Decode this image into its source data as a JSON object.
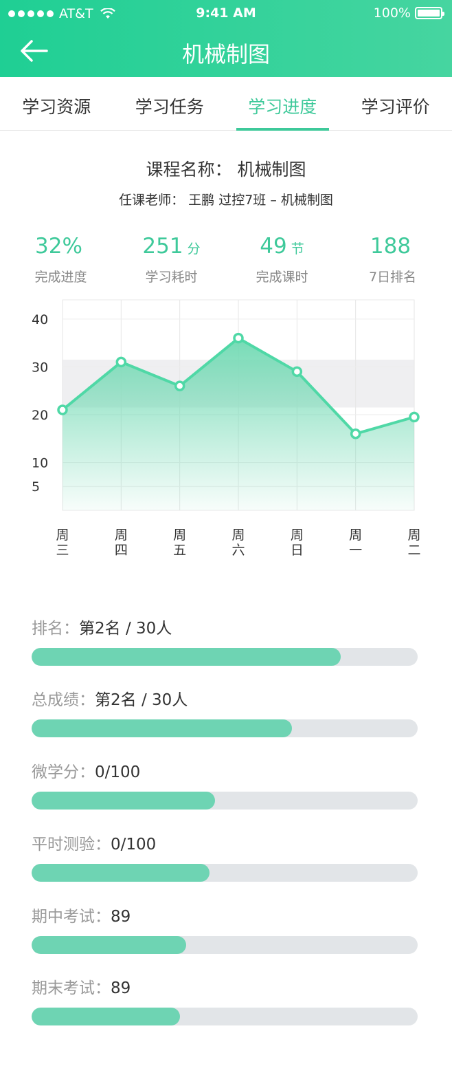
{
  "status_bar": {
    "carrier": "AT&T",
    "time": "9:41 AM",
    "battery": "100%"
  },
  "nav": {
    "title": "机械制图"
  },
  "tabs": [
    {
      "label": "学习资源",
      "active": false
    },
    {
      "label": "学习任务",
      "active": false
    },
    {
      "label": "学习进度",
      "active": true
    },
    {
      "label": "学习评价",
      "active": false
    }
  ],
  "course": {
    "name": "课程名称：  机械制图",
    "teacher": "任课老师：  王鹏    过控7班 – 机械制图"
  },
  "stats": [
    {
      "value": "32%",
      "unit": "",
      "label": "完成进度"
    },
    {
      "value": "251",
      "unit": "分",
      "label": "学习耗时"
    },
    {
      "value": "49",
      "unit": "节",
      "label": "完成课时"
    },
    {
      "value": "188",
      "unit": "",
      "label": "7日排名"
    }
  ],
  "chart_data": {
    "type": "area",
    "categories": [
      "周三",
      "周四",
      "周五",
      "周六",
      "周日",
      "周一",
      "周二"
    ],
    "values": [
      21,
      31,
      26,
      36,
      29,
      16,
      19.5
    ],
    "y_ticks": [
      40,
      30,
      20,
      10,
      5
    ],
    "ylim": [
      0,
      44
    ],
    "grid": true,
    "colors": {
      "line": "#4fd8a6",
      "fill_top": "#6fd9b2",
      "band": "#efeff1"
    }
  },
  "progress": [
    {
      "label": "排名：",
      "value": "第2名 / 30人",
      "fraction": 0.8
    },
    {
      "label": "总成绩：",
      "value": "第2名 / 30人",
      "fraction": 0.675
    },
    {
      "label": "微学分：",
      "value": "0/100",
      "fraction": 0.475
    },
    {
      "label": "平时测验：",
      "value": "0/100",
      "fraction": 0.46
    },
    {
      "label": "期中考试：",
      "value": "89",
      "fraction": 0.4
    },
    {
      "label": "期末考试：",
      "value": "89",
      "fraction": 0.385
    }
  ]
}
